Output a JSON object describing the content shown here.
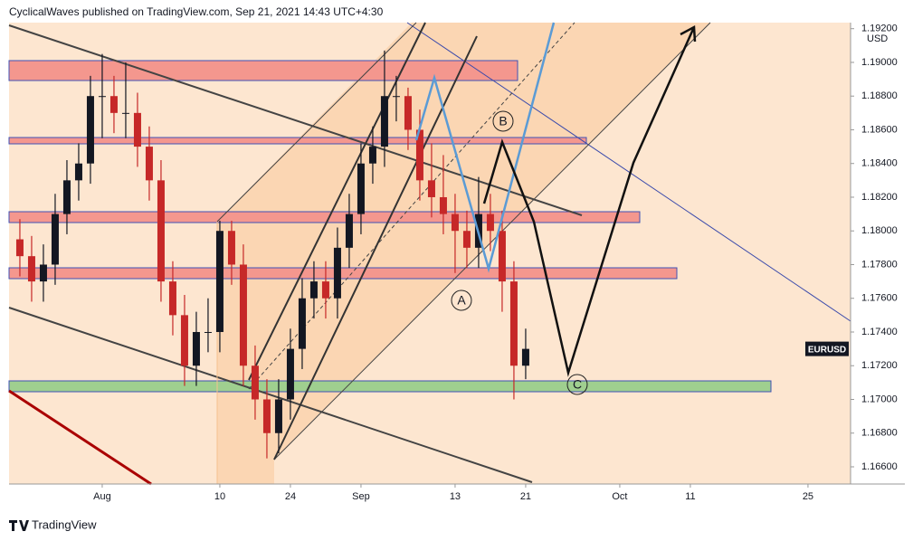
{
  "header": "CyclicalWaves published on TradingView.com, Sep 21, 2021 14:43 UTC+4:30",
  "footer": "TradingView",
  "chart_data": {
    "type": "candlestick",
    "symbol": "EURUSD",
    "currency": "USD",
    "annotations": [
      "A",
      "B",
      "C"
    ],
    "up_color": "#131722",
    "down_color": "#c62828",
    "x": [
      -7,
      -6,
      -5,
      -4,
      -3,
      -2,
      -1,
      0,
      1,
      2,
      3,
      4,
      5,
      6,
      7,
      8,
      9,
      10,
      11,
      12,
      13,
      14,
      15,
      16,
      17,
      18,
      19,
      20,
      21,
      22,
      23,
      24,
      25,
      26,
      27,
      28,
      29,
      30,
      31,
      32,
      33,
      34,
      35,
      36
    ],
    "open": [
      1.1795,
      1.1785,
      1.177,
      1.178,
      1.181,
      1.183,
      1.184,
      1.188,
      1.188,
      1.187,
      1.187,
      1.185,
      1.183,
      1.177,
      1.175,
      1.172,
      1.174,
      1.174,
      1.18,
      1.178,
      1.172,
      1.17,
      1.168,
      1.17,
      1.173,
      1.176,
      1.177,
      1.176,
      1.179,
      1.181,
      1.184,
      1.185,
      1.188,
      1.188,
      1.186,
      1.183,
      1.182,
      1.181,
      1.18,
      1.179,
      1.181,
      1.18,
      1.177,
      1.172
    ],
    "high": [
      1.1807,
      1.1797,
      1.1792,
      1.1822,
      1.1842,
      1.1852,
      1.1892,
      1.1905,
      1.1892,
      1.19,
      1.1882,
      1.1862,
      1.1842,
      1.1782,
      1.1762,
      1.1752,
      1.176,
      1.1806,
      1.1806,
      1.1792,
      1.1732,
      1.1712,
      1.1712,
      1.1742,
      1.1772,
      1.1782,
      1.1782,
      1.1802,
      1.1822,
      1.1852,
      1.1862,
      1.1907,
      1.1892,
      1.1885,
      1.1872,
      1.1852,
      1.1845,
      1.1822,
      1.1812,
      1.1832,
      1.1822,
      1.1812,
      1.1782,
      1.1742
    ],
    "low": [
      1.1773,
      1.1758,
      1.1758,
      1.1768,
      1.1798,
      1.1818,
      1.1828,
      1.1855,
      1.1858,
      1.1855,
      1.1838,
      1.1818,
      1.1758,
      1.1738,
      1.1708,
      1.1708,
      1.1728,
      1.1728,
      1.1768,
      1.1708,
      1.1688,
      1.1665,
      1.1668,
      1.1688,
      1.1718,
      1.1748,
      1.1748,
      1.1748,
      1.1778,
      1.1798,
      1.1828,
      1.1838,
      1.1865,
      1.1848,
      1.1818,
      1.1808,
      1.1798,
      1.1775,
      1.1778,
      1.1778,
      1.1788,
      1.1752,
      1.17,
      1.1712
    ],
    "close": [
      1.1785,
      1.177,
      1.178,
      1.181,
      1.183,
      1.184,
      1.188,
      1.188,
      1.187,
      1.187,
      1.185,
      1.183,
      1.177,
      1.175,
      1.172,
      1.174,
      1.174,
      1.18,
      1.178,
      1.172,
      1.17,
      1.168,
      1.17,
      1.173,
      1.176,
      1.177,
      1.176,
      1.179,
      1.181,
      1.184,
      1.185,
      1.188,
      1.188,
      1.186,
      1.183,
      1.182,
      1.181,
      1.18,
      1.179,
      1.181,
      1.18,
      1.177,
      1.172,
      1.173
    ],
    "xlim": [
      -7.92,
      63.62
    ],
    "xticks": [
      {
        "value": 0,
        "label": "Aug"
      },
      10,
      {
        "value": 16,
        "label": "24"
      },
      {
        "value": 22,
        "label": "Sep"
      },
      {
        "value": 30,
        "label": "13"
      },
      {
        "value": 36,
        "label": "21"
      },
      {
        "value": 44,
        "label": "Oct"
      },
      {
        "value": 50,
        "label": "11"
      },
      {
        "value": 60,
        "label": "25"
      }
    ],
    "ylim": [
      1.16498,
      1.19236
    ],
    "yticks": [
      {
        "value": 1.166,
        "label": "1.16600"
      },
      {
        "value": 1.168,
        "label": "1.16800"
      },
      {
        "value": 1.17,
        "label": "1.17000"
      },
      {
        "value": 1.172,
        "label": "1.17200"
      },
      {
        "value": 1.174,
        "label": "1.17400"
      },
      {
        "value": 1.176,
        "label": "1.17600"
      },
      {
        "value": 1.178,
        "label": "1.17800"
      },
      {
        "value": 1.18,
        "label": "1.18000"
      },
      {
        "value": 1.182,
        "label": "1.18200"
      },
      {
        "value": 1.184,
        "label": "1.18400"
      },
      {
        "value": 1.186,
        "label": "1.18600"
      },
      {
        "value": 1.188,
        "label": "1.18800"
      },
      {
        "value": 1.19,
        "label": "1.19000"
      },
      {
        "value": 1.192,
        "label": "1.19200"
      }
    ]
  }
}
